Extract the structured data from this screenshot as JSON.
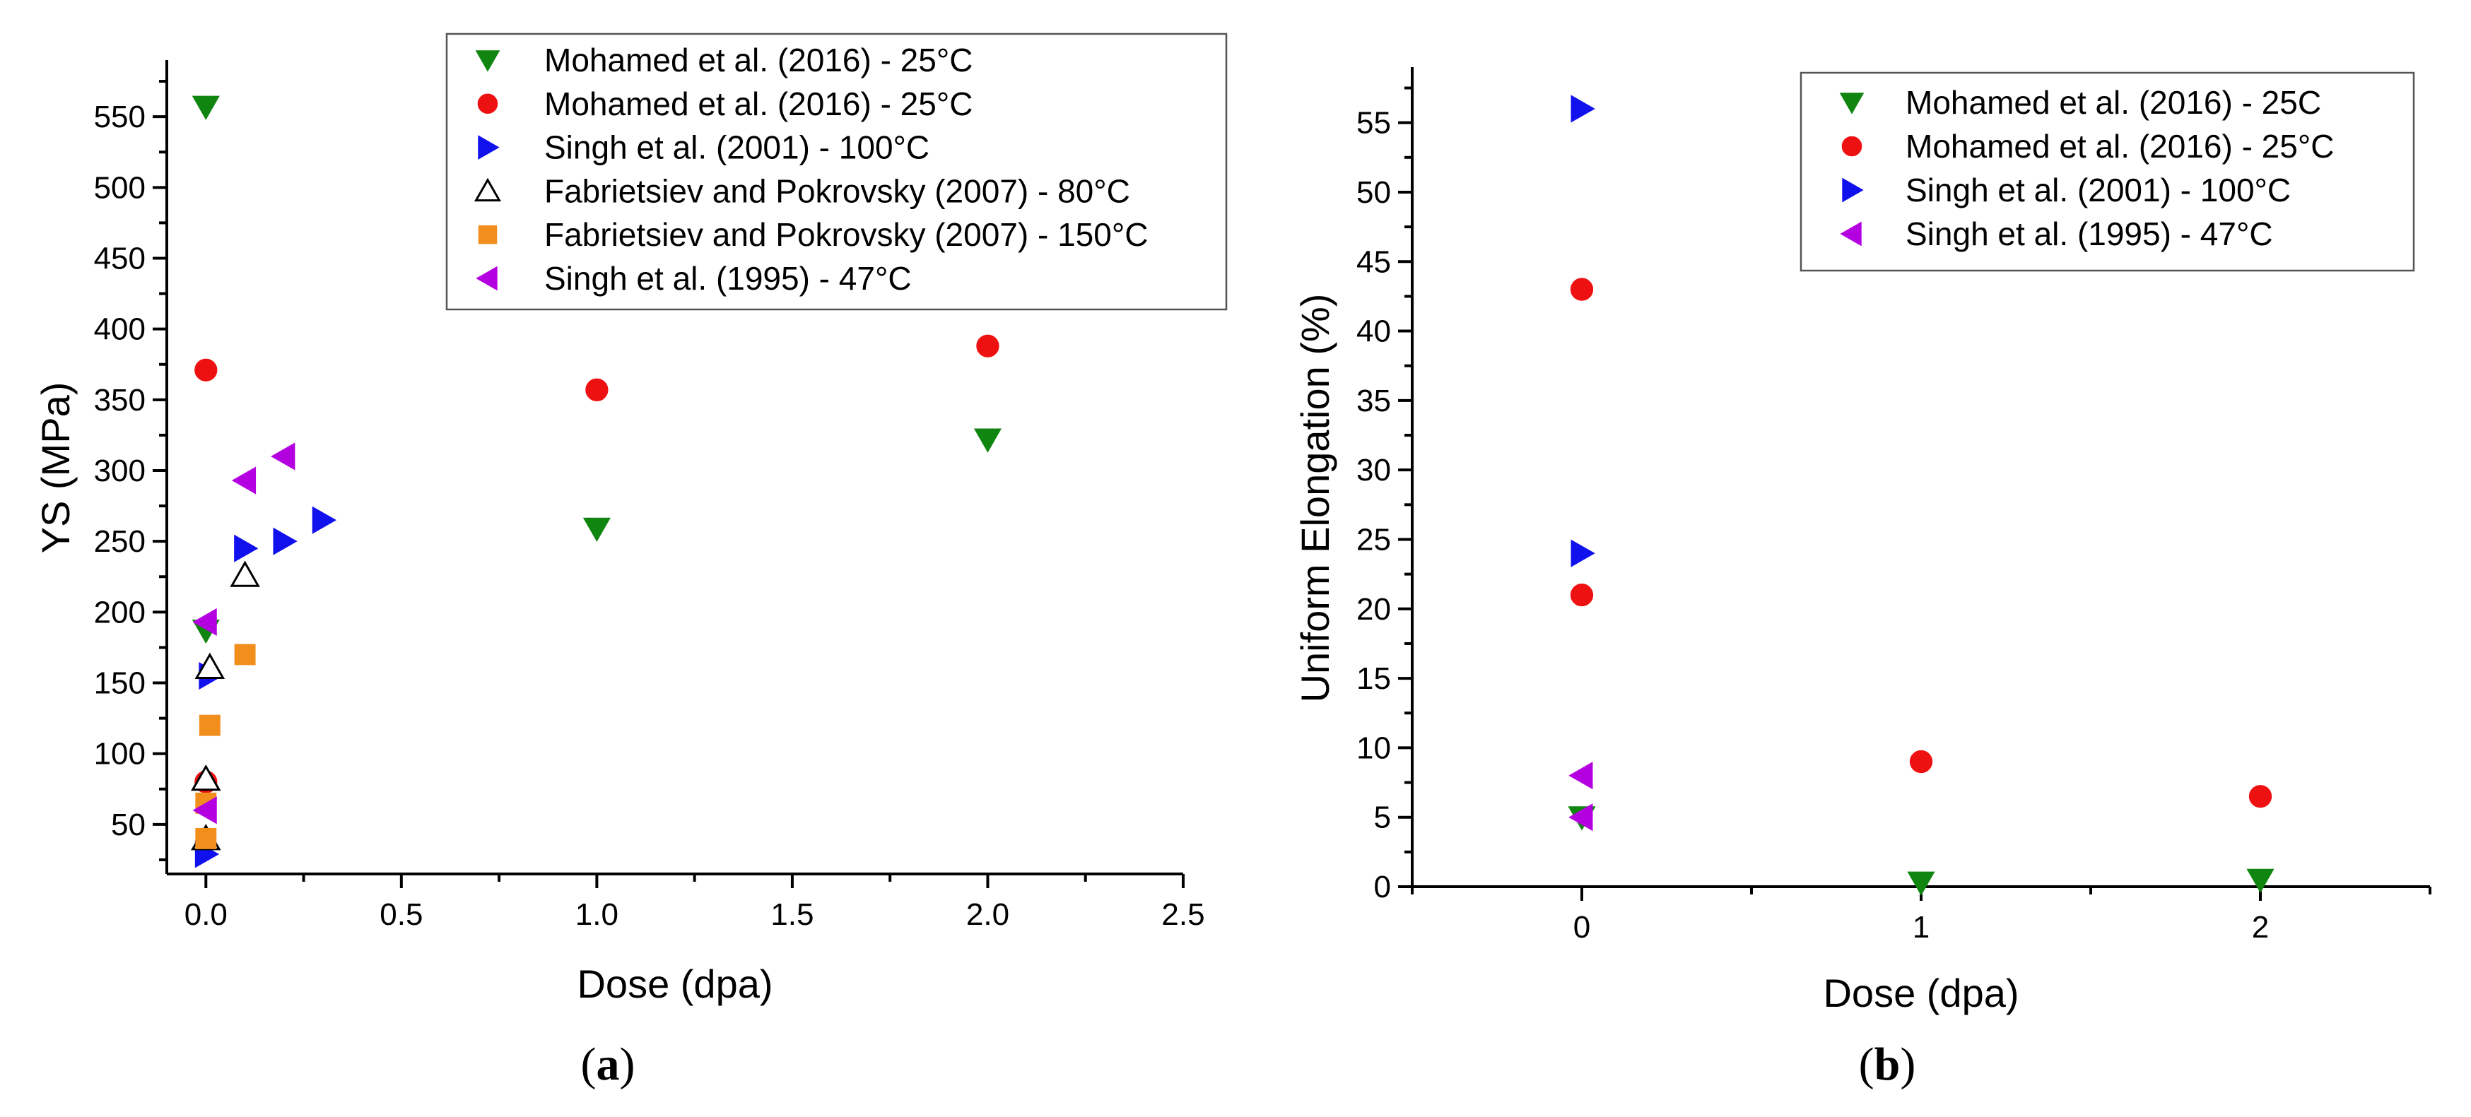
{
  "chart_data": [
    {
      "id": "a",
      "type": "scatter",
      "panel_label": "a",
      "xlabel": "Dose (dpa)",
      "ylabel": "YS (MPa)",
      "xlim": [
        -0.1,
        2.5
      ],
      "ylim": [
        15,
        590
      ],
      "xticks": [
        0,
        0.5,
        1,
        1.5,
        2,
        2.5
      ],
      "xtick_labels": [
        "0.0",
        "0.5",
        "1.0",
        "1.5",
        "2.0",
        "2.5"
      ],
      "xminor_step": 0.25,
      "yticks": [
        50,
        100,
        150,
        200,
        250,
        300,
        350,
        400,
        450,
        500,
        550
      ],
      "ytick_labels": [
        "50",
        "100",
        "150",
        "200",
        "250",
        "300",
        "350",
        "400",
        "450",
        "500",
        "550"
      ],
      "yminor_step": 25,
      "legend_position": "top-right",
      "series": [
        {
          "name": "Mohamed et al. (2016) - 25°C",
          "marker": "triangle-down",
          "color": "#108510",
          "filled": true,
          "points": [
            [
              0,
              557
            ],
            [
              0,
              187
            ],
            [
              1.0,
              259
            ],
            [
              2.0,
              322
            ]
          ]
        },
        {
          "name": "Mohamed et al. (2016) - 25°C",
          "marker": "circle",
          "color": "#ee1111",
          "filled": true,
          "points": [
            [
              0,
              371
            ],
            [
              0,
              80
            ],
            [
              1.0,
              357
            ],
            [
              2.0,
              388
            ]
          ]
        },
        {
          "name": "Singh et al. (2001) - 100°C",
          "marker": "triangle-right",
          "color": "#1111ee",
          "filled": true,
          "points": [
            [
              0,
              29
            ],
            [
              0.01,
              155
            ],
            [
              0.1,
              245
            ],
            [
              0.2,
              250
            ],
            [
              0.3,
              265
            ]
          ]
        },
        {
          "name": "Fabrietsiev and Pokrovsky (2007) - 80°C",
          "marker": "triangle-up",
          "color": "#000000",
          "filled": false,
          "points": [
            [
              0,
              40
            ],
            [
              0,
              82
            ],
            [
              0.01,
              161
            ],
            [
              0.1,
              226
            ]
          ]
        },
        {
          "name": "Fabrietsiev and Pokrovsky (2007) - 150°C",
          "marker": "square",
          "color": "#f28e1c",
          "filled": true,
          "points": [
            [
              0,
              40
            ],
            [
              0,
              65
            ],
            [
              0.01,
              120
            ],
            [
              0.1,
              170
            ]
          ]
        },
        {
          "name": "Singh et al. (1995) - 47°C",
          "marker": "triangle-left",
          "color": "#b400e0",
          "filled": true,
          "points": [
            [
              0,
              60
            ],
            [
              0,
              193
            ],
            [
              0.1,
              293
            ],
            [
              0.2,
              310
            ]
          ]
        }
      ]
    },
    {
      "id": "b",
      "type": "scatter",
      "panel_label": "b",
      "xlabel": "Dose (dpa)",
      "ylabel": "Uniform Elongation (%)",
      "xlim": [
        -0.5,
        2.5
      ],
      "ylim": [
        0,
        59
      ],
      "xticks": [
        0,
        1,
        2
      ],
      "xtick_labels": [
        "0",
        "1",
        "2"
      ],
      "xminor_step": 0.5,
      "yticks": [
        0,
        5,
        10,
        15,
        20,
        25,
        30,
        35,
        40,
        45,
        50,
        55
      ],
      "ytick_labels": [
        "0",
        "5",
        "10",
        "15",
        "20",
        "25",
        "30",
        "35",
        "40",
        "45",
        "50",
        "55"
      ],
      "yminor_step": 2.5,
      "legend_position": "top-right",
      "series": [
        {
          "name": "Mohamed et al. (2016) - 25C",
          "marker": "triangle-down",
          "color": "#108510",
          "filled": true,
          "points": [
            [
              0,
              5
            ],
            [
              1,
              0.3
            ],
            [
              2,
              0.5
            ]
          ]
        },
        {
          "name": "Mohamed et al. (2016) - 25°C",
          "marker": "circle",
          "color": "#ee1111",
          "filled": true,
          "points": [
            [
              0,
              43
            ],
            [
              0,
              21
            ],
            [
              1,
              9
            ],
            [
              2,
              6.5
            ]
          ]
        },
        {
          "name": "Singh et al. (2001) - 100°C",
          "marker": "triangle-right",
          "color": "#1111ee",
          "filled": true,
          "points": [
            [
              0,
              56
            ],
            [
              0,
              24
            ]
          ]
        },
        {
          "name": "Singh et al. (1995) - 47°C",
          "marker": "triangle-left",
          "color": "#b400e0",
          "filled": true,
          "points": [
            [
              0,
              8
            ],
            [
              0,
              5
            ]
          ]
        }
      ]
    }
  ]
}
